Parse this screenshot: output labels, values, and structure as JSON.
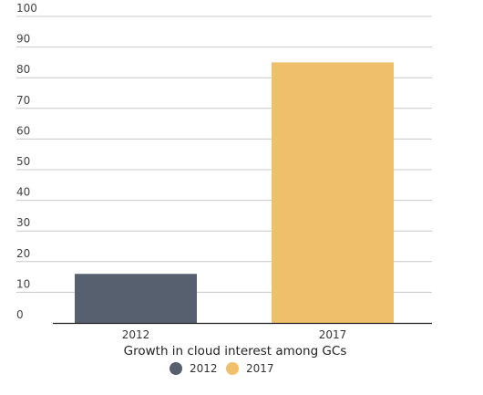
{
  "chart_data": {
    "type": "bar",
    "categories": [
      "2012",
      "2017"
    ],
    "series": [
      {
        "name": "2012",
        "values": [
          16,
          null
        ],
        "color": "#56606e"
      },
      {
        "name": "2017",
        "values": [
          null,
          85
        ],
        "color": "#f0bf6b"
      }
    ],
    "title": "",
    "xlabel": "Growth in cloud interest among GCs",
    "ylabel": "",
    "ylim": [
      0,
      100
    ],
    "yticks": [
      "0",
      "10",
      "20",
      "30",
      "40",
      "50",
      "60",
      "70",
      "80",
      "90",
      "100"
    ],
    "grid": true,
    "legend_position": "bottom",
    "legend": [
      {
        "label": "2012",
        "color": "#56606e"
      },
      {
        "label": "2017",
        "color": "#f0bf6b"
      }
    ]
  }
}
